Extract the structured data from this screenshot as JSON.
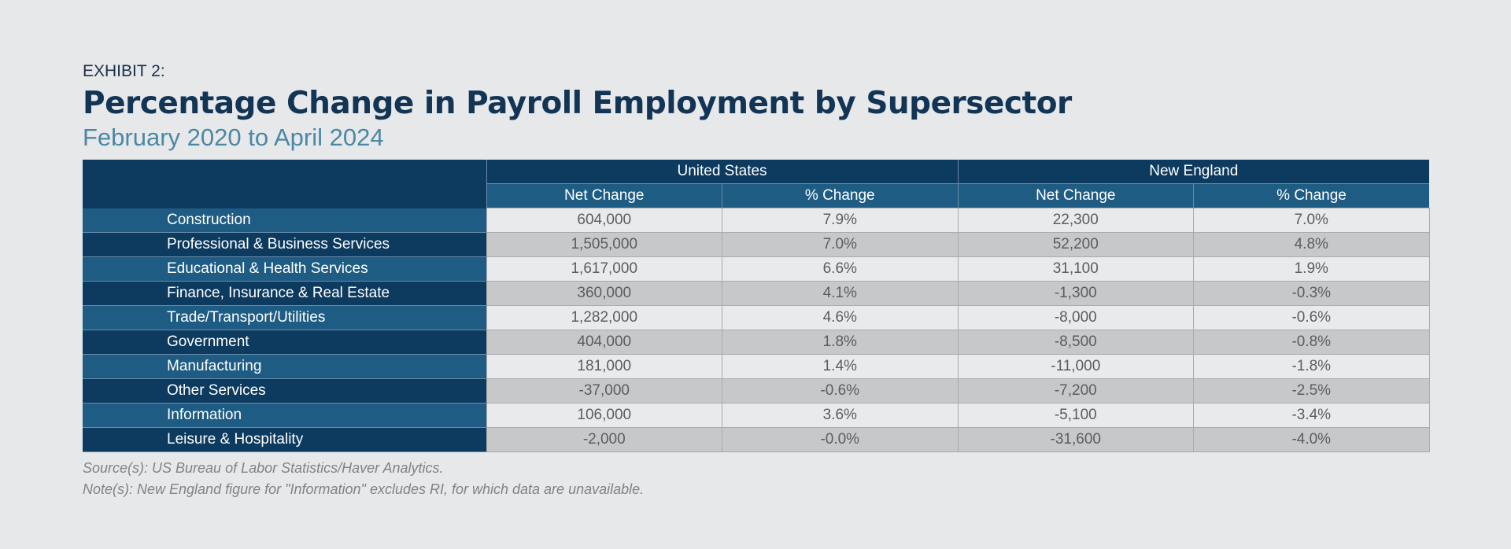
{
  "exhibit": "EXHIBIT 2:",
  "title": "Percentage Change in Payroll Employment by Supersector",
  "subtitle": "February 2020 to April 2024",
  "table": {
    "groups": [
      "United States",
      "New England"
    ],
    "columns": [
      "Net Change",
      "% Change",
      "Net Change",
      "% Change"
    ],
    "rows": [
      {
        "label": "Construction",
        "values": [
          "604,000",
          "7.9%",
          "22,300",
          "7.0%"
        ]
      },
      {
        "label": "Professional & Business Services",
        "values": [
          "1,505,000",
          "7.0%",
          "52,200",
          "4.8%"
        ]
      },
      {
        "label": "Educational & Health Services",
        "values": [
          "1,617,000",
          "6.6%",
          "31,100",
          "1.9%"
        ]
      },
      {
        "label": "Finance, Insurance & Real Estate",
        "values": [
          "360,000",
          "4.1%",
          "-1,300",
          "-0.3%"
        ]
      },
      {
        "label": "Trade/Transport/Utilities",
        "values": [
          "1,282,000",
          "4.6%",
          "-8,000",
          "-0.6%"
        ]
      },
      {
        "label": "Government",
        "values": [
          "404,000",
          "1.8%",
          "-8,500",
          "-0.8%"
        ]
      },
      {
        "label": "Manufacturing",
        "values": [
          "181,000",
          "1.4%",
          "-11,000",
          "-1.8%"
        ]
      },
      {
        "label": "Other Services",
        "values": [
          "-37,000",
          "-0.6%",
          "-7,200",
          "-2.5%"
        ]
      },
      {
        "label": "Information",
        "values": [
          "106,000",
          "3.6%",
          "-5,100",
          "-3.4%"
        ]
      },
      {
        "label": "Leisure & Hospitality",
        "values": [
          "-2,000",
          "-0.0%",
          "-31,600",
          "-4.0%"
        ]
      }
    ]
  },
  "source": "Source(s): US Bureau of Labor Statistics/Haver Analytics.",
  "note": "Note(s): New England figure for \"Information\" excludes RI, for which data are unavailable.",
  "colors": {
    "background": "#e7e8ea",
    "navy": "#0d3a5f",
    "blue": "#1f5c84",
    "title": "#123556",
    "subtitle": "#4a89a4"
  }
}
